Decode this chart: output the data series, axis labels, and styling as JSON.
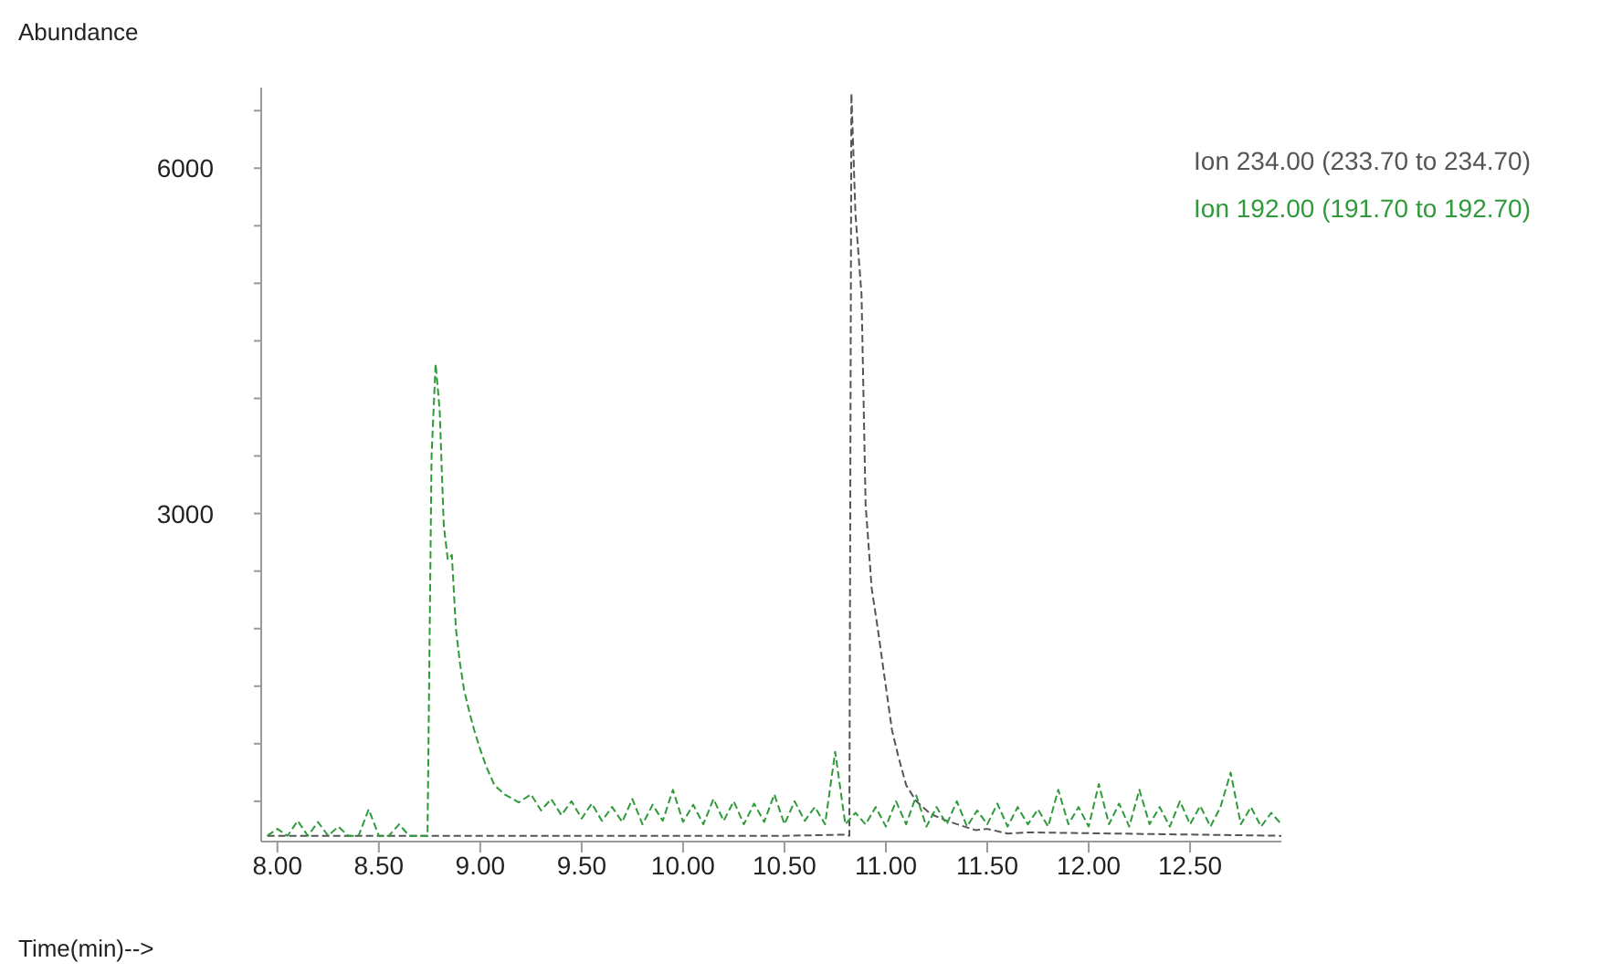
{
  "chart_data": {
    "type": "line",
    "xlabel": "Time(min)-->",
    "ylabel": "Abundance",
    "xlim": [
      7.92,
      12.95
    ],
    "ylim": [
      150,
      6700
    ],
    "xticks": [
      {
        "value": 8,
        "label": "8.00"
      },
      {
        "value": 8.5,
        "label": "8.50"
      },
      {
        "value": 9,
        "label": "9.00"
      },
      {
        "value": 9.5,
        "label": "9.50"
      },
      {
        "value": 10,
        "label": "10.00"
      },
      {
        "value": 10.5,
        "label": "10.50"
      },
      {
        "value": 11,
        "label": "11.00"
      },
      {
        "value": 11.5,
        "label": "11.50"
      },
      {
        "value": 12,
        "label": "12.00"
      },
      {
        "value": 12.5,
        "label": "12.50"
      }
    ],
    "yticks": [
      {
        "value": 500,
        "label": null
      },
      {
        "value": 1000,
        "label": null
      },
      {
        "value": 1500,
        "label": null
      },
      {
        "value": 2000,
        "label": null
      },
      {
        "value": 2500,
        "label": null
      },
      3000,
      {
        "value": 3500,
        "label": null
      },
      {
        "value": 4000,
        "label": null
      },
      {
        "value": 4500,
        "label": null
      },
      {
        "value": 5000,
        "label": null
      },
      {
        "value": 5500,
        "label": null
      },
      6000,
      {
        "value": 6500,
        "label": null
      }
    ],
    "grid": false,
    "legend": "top right",
    "line_style": "dashed",
    "marker": "none",
    "series": [
      {
        "name": "Ion 234.00 (233.70 to 234.70)",
        "color": "#555555",
        "x": [
          7.95,
          10.5,
          10.8,
          10.82,
          10.83,
          10.85,
          10.88,
          10.9,
          10.93,
          10.96,
          10.99,
          11.03,
          11.06,
          11.1,
          11.15,
          11.22,
          11.3,
          11.44,
          11.5,
          11.6,
          11.7,
          12.95
        ],
        "values": [
          200,
          200,
          210,
          200,
          6650,
          5600,
          4900,
          3080,
          2350,
          2000,
          1620,
          1120,
          900,
          640,
          500,
          390,
          330,
          250,
          260,
          220,
          230,
          200
        ]
      },
      {
        "name": "Ion 192.00 (191.70 to 192.70)",
        "color": "#2e9a3a",
        "x": [
          7.95,
          8.0,
          8.05,
          8.1,
          8.15,
          8.2,
          8.25,
          8.3,
          8.35,
          8.4,
          8.45,
          8.5,
          8.55,
          8.6,
          8.65,
          8.72,
          8.74,
          8.76,
          8.78,
          8.8,
          8.82,
          8.84,
          8.86,
          8.88,
          8.9,
          8.92,
          8.95,
          8.97,
          9.0,
          9.03,
          9.07,
          9.12,
          9.19,
          9.25,
          9.3,
          9.35,
          9.4,
          9.45,
          9.5,
          9.55,
          9.6,
          9.65,
          9.7,
          9.75,
          9.8,
          9.85,
          9.9,
          9.95,
          10.0,
          10.05,
          10.1,
          10.15,
          10.2,
          10.25,
          10.3,
          10.35,
          10.4,
          10.45,
          10.5,
          10.55,
          10.6,
          10.65,
          10.7,
          10.75,
          10.8,
          10.85,
          10.9,
          10.95,
          11.0,
          11.05,
          11.1,
          11.15,
          11.2,
          11.25,
          11.3,
          11.35,
          11.4,
          11.45,
          11.5,
          11.55,
          11.6,
          11.65,
          11.7,
          11.75,
          11.8,
          11.85,
          11.9,
          11.95,
          12.0,
          12.05,
          12.1,
          12.15,
          12.2,
          12.25,
          12.3,
          12.35,
          12.4,
          12.45,
          12.5,
          12.55,
          12.6,
          12.65,
          12.7,
          12.75,
          12.8,
          12.85,
          12.9,
          12.95
        ],
        "values": [
          200,
          260,
          200,
          330,
          200,
          320,
          200,
          280,
          200,
          200,
          430,
          200,
          200,
          300,
          200,
          200,
          200,
          3500,
          4300,
          3900,
          2900,
          2600,
          2640,
          2000,
          1700,
          1470,
          1250,
          1120,
          950,
          800,
          640,
          560,
          490,
          560,
          420,
          520,
          380,
          500,
          350,
          480,
          330,
          450,
          320,
          520,
          300,
          470,
          330,
          600,
          320,
          470,
          300,
          520,
          330,
          500,
          300,
          480,
          320,
          560,
          300,
          500,
          330,
          450,
          300,
          930,
          300,
          400,
          300,
          450,
          280,
          500,
          300,
          550,
          280,
          450,
          300,
          500,
          280,
          420,
          300,
          480,
          280,
          450,
          300,
          430,
          280,
          600,
          300,
          450,
          280,
          650,
          300,
          480,
          280,
          600,
          300,
          450,
          280,
          500,
          300,
          460,
          280,
          450,
          750,
          300,
          450,
          280,
          400,
          300
        ]
      }
    ]
  }
}
